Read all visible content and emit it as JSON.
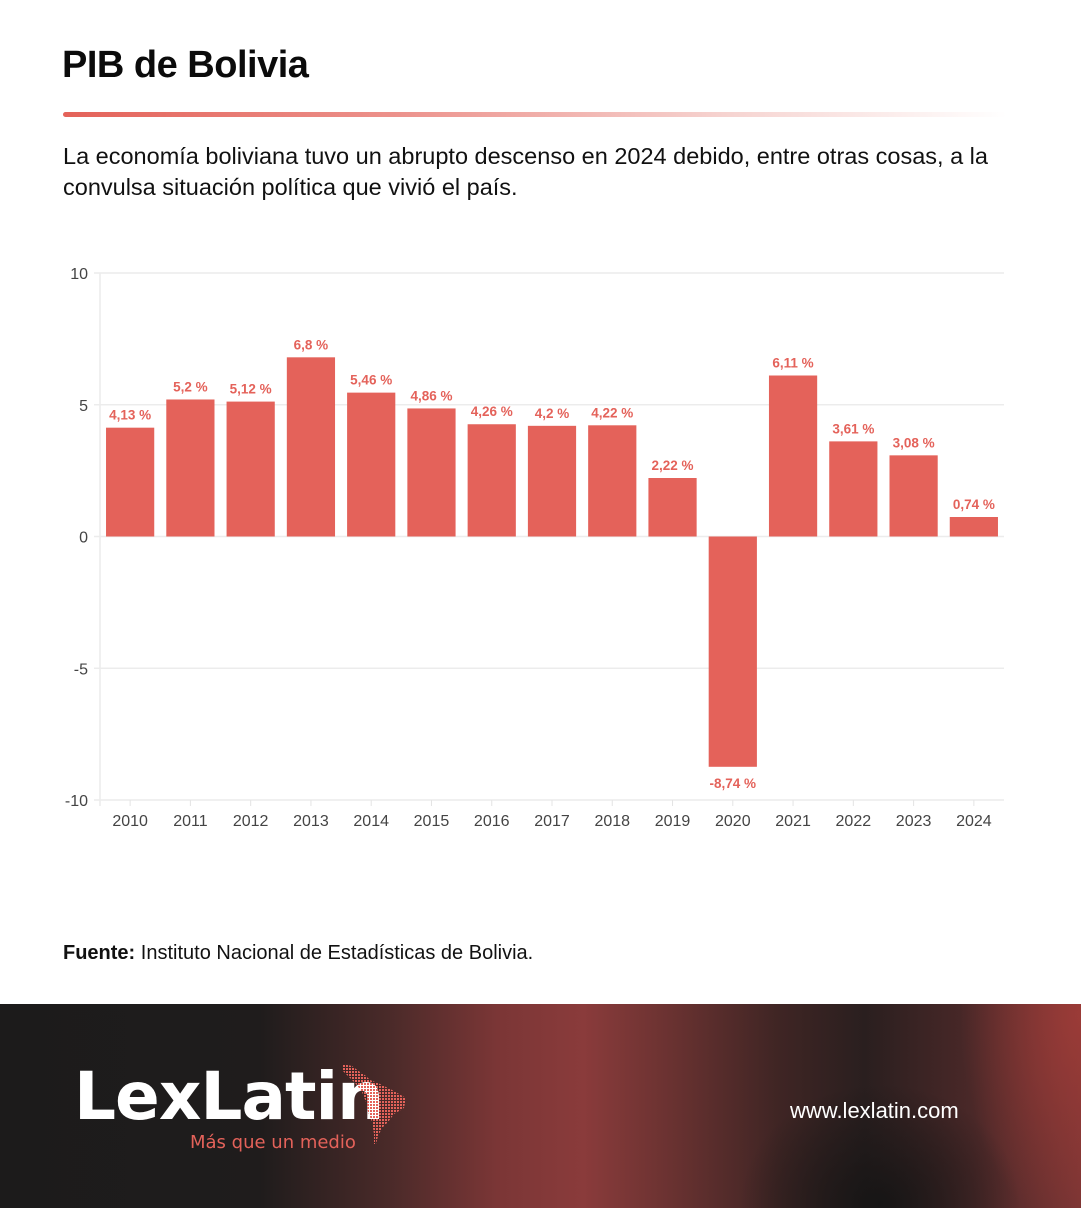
{
  "header": {
    "title": "PIB de Bolivia",
    "subtitle": "La economía boliviana tuvo un abrupto descenso en 2024 debido, entre otras cosas, a la convulsa situación política que vivió el país."
  },
  "chart_data": {
    "type": "bar",
    "title": "PIB de Bolivia",
    "xlabel": "",
    "ylabel": "",
    "categories": [
      "2010",
      "2011",
      "2012",
      "2013",
      "2014",
      "2015",
      "2016",
      "2017",
      "2018",
      "2019",
      "2020",
      "2021",
      "2022",
      "2023",
      "2024"
    ],
    "values": [
      4.13,
      5.2,
      5.12,
      6.8,
      5.46,
      4.86,
      4.26,
      4.2,
      4.22,
      2.22,
      -8.74,
      6.11,
      3.61,
      3.08,
      0.74
    ],
    "data_labels": [
      "4,13 %",
      "5,2 %",
      "5,12 %",
      "6,8 %",
      "5,46 %",
      "4,86 %",
      "4,26 %",
      "4,2 %",
      "4,22 %",
      "2,22 %",
      "-8,74 %",
      "6,11 %",
      "3,61 %",
      "3,08 %",
      "0,74 %"
    ],
    "ylim": [
      -10,
      10
    ],
    "yticks": [
      10,
      5,
      0,
      -5,
      -10
    ],
    "ytick_labels": [
      "10",
      "5",
      "0",
      "-5",
      "-10"
    ],
    "grid": true,
    "legend": "none",
    "bar_color": "#e4625a"
  },
  "source": {
    "label": "Fuente:",
    "text": " Instituto Nacional de Estadísticas de Bolivia."
  },
  "footer": {
    "logo_text": "LexLatin",
    "tagline": "Más que un medio",
    "website": "www.lexlatin.com",
    "logo_icon": "latin-america-map-icon"
  }
}
